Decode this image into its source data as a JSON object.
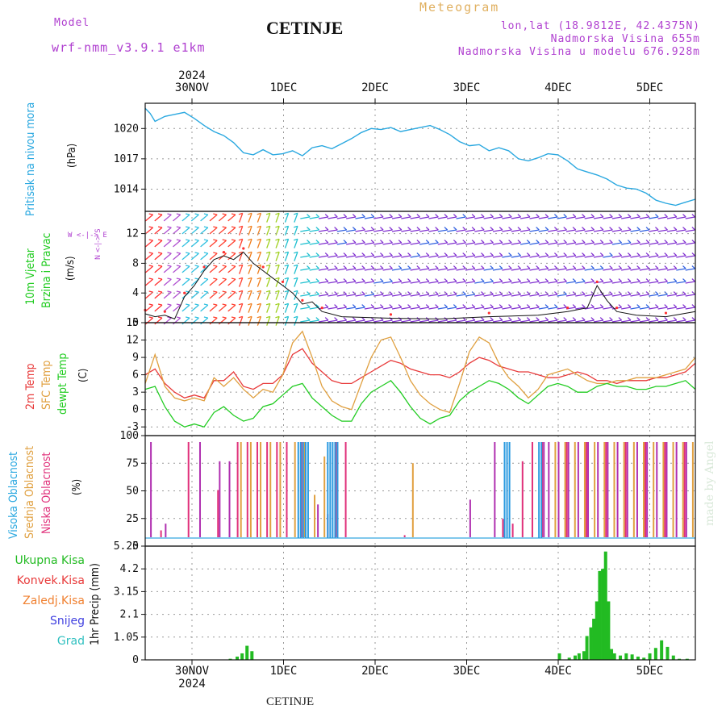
{
  "header": {
    "model_label": "Model",
    "model_value": "wrf-nmm_v3.9.1 e1km",
    "title": "CETINJE",
    "meteogram": "Meteogram",
    "lonlat": "lon,lat (18.9812E, 42.4375N)",
    "altitude": "Nadmorska Visina 655m",
    "model_altitude": "Nadmorska Visina u modelu 676.928m",
    "year_top": "2024",
    "footer_label": "CETINJE",
    "credit": "made by Angel"
  },
  "colors": {
    "pressure": "#2aa8e0",
    "temp2m": "#e83a3a",
    "sfc": "#e0a040",
    "dewpt": "#22cc22",
    "high": "#b030b0",
    "mid": "#e0a040",
    "low": "#e0307a",
    "precip": "#22bb22",
    "wind_dots": "#ff3030"
  },
  "axes": {
    "day_labels": [
      "30NOV",
      "1DEC",
      "2DEC",
      "3DEC",
      "4DEC",
      "5DEC"
    ],
    "bottom_year": "2024"
  },
  "panels": {
    "pressure": {
      "ylabel_main": "Pritisak na nivou mora",
      "unit": "(hPa)",
      "ticks": [
        "1020",
        "1017",
        "1014"
      ]
    },
    "wind": {
      "ylabel1": "10m Vjetar",
      "ylabel2": "Brzina i Pravac",
      "unit": "(m/s)",
      "ticks": [
        "12",
        "8",
        "4",
        "0"
      ],
      "compass": "W <-|-> E",
      "compass_v": "N <-|-> S"
    },
    "temp": {
      "l1": "2m Temp",
      "l2": "SFC Temp",
      "l3": "dewpt Temp",
      "unit": "(C)",
      "ticks": [
        "15",
        "12",
        "9",
        "6",
        "3",
        "0",
        "-3"
      ]
    },
    "cloud": {
      "l1": "Visoka Oblacnost",
      "l2": "Srednja Oblacnost",
      "l3": "Niska Oblacnost",
      "unit": "(%)",
      "ticks": [
        "100",
        "75",
        "50",
        "25",
        "0"
      ]
    },
    "precip": {
      "ylabel": "1hr Precip (mm)",
      "ticks": [
        "5.25",
        "4.2",
        "3.15",
        "2.1",
        "1.05",
        "0"
      ],
      "legend": [
        "Ukupna Kisa",
        "Konvek.Kisa",
        "Zaledj.Kisa",
        "Snijeg",
        "Grad"
      ],
      "legend_colors": [
        "#22bb22",
        "#e83a3a",
        "#f08030",
        "#4040e0",
        "#30c0c0"
      ]
    }
  },
  "chart_data": [
    {
      "type": "line",
      "title": "",
      "ylabel": "Pritisak na nivou mora (hPa)",
      "ylim": [
        1011.8,
        1022.5
      ],
      "x_days": [
        0.0,
        0.05,
        0.1,
        0.2,
        0.3,
        0.4,
        0.5,
        0.6,
        0.7,
        0.8,
        0.9,
        1.0,
        1.1,
        1.2,
        1.3,
        1.4,
        1.5,
        1.6,
        1.7,
        1.8,
        1.9,
        2.0,
        2.1,
        2.2,
        2.3,
        2.4,
        2.5,
        2.6,
        2.7,
        2.8,
        2.9,
        3.0,
        3.1,
        3.2,
        3.3,
        3.4,
        3.5,
        3.6,
        3.7,
        3.8,
        3.9,
        4.0,
        4.1,
        4.2,
        4.3,
        4.4,
        4.5,
        4.6,
        4.7,
        4.8,
        4.9,
        5.0,
        5.1,
        5.2,
        5.3,
        5.4,
        5.5,
        5.6
      ],
      "series": [
        {
          "name": "",
          "values": [
            1022.0,
            1021.5,
            1020.7,
            1021.2,
            1021.4,
            1021.6,
            1021.0,
            1020.3,
            1019.7,
            1019.3,
            1018.6,
            1017.6,
            1017.4,
            1017.9,
            1017.4,
            1017.5,
            1017.8,
            1017.3,
            1018.1,
            1018.3,
            1018.0,
            1018.5,
            1019.0,
            1019.6,
            1020.0,
            1019.9,
            1020.1,
            1019.7,
            1019.9,
            1020.1,
            1020.3,
            1019.9,
            1019.4,
            1018.7,
            1018.3,
            1018.4,
            1017.8,
            1018.1,
            1017.8,
            1017.0,
            1016.8,
            1017.1,
            1017.5,
            1017.4,
            1016.8,
            1016.0,
            1015.7,
            1015.4,
            1015.0,
            1014.4,
            1014.1,
            1014.0,
            1013.6,
            1012.9,
            1012.6,
            1012.4,
            1012.7,
            1013.0
          ]
        }
      ]
    },
    {
      "type": "line",
      "title": "",
      "ylabel": "10m Vjetar Brzina i Pravac (m/s)",
      "ylim": [
        0,
        15
      ],
      "x_days": [
        0.0,
        0.1,
        0.2,
        0.3,
        0.4,
        0.5,
        0.6,
        0.7,
        0.8,
        0.9,
        1.0,
        1.1,
        1.2,
        1.3,
        1.4,
        1.5,
        1.6,
        1.7,
        1.8,
        2.0,
        2.5,
        3.0,
        3.5,
        4.0,
        4.3,
        4.5,
        4.6,
        4.7,
        4.8,
        5.0,
        5.3,
        5.6
      ],
      "series": [
        {
          "name": "",
          "values": [
            1.2,
            0.8,
            1.0,
            0.5,
            3.5,
            5.0,
            7.0,
            8.5,
            9.0,
            8.5,
            9.5,
            8.0,
            7.0,
            6.0,
            5.0,
            4.0,
            2.5,
            2.8,
            1.5,
            0.8,
            0.6,
            0.5,
            0.8,
            1.0,
            1.5,
            2.0,
            5.0,
            3.0,
            1.5,
            1.0,
            0.8,
            1.5
          ]
        }
      ]
    },
    {
      "type": "line",
      "title": "",
      "ylabel": "(C)",
      "ylim": [
        -4.5,
        15
      ],
      "x_days": [
        0.0,
        0.1,
        0.2,
        0.3,
        0.4,
        0.5,
        0.6,
        0.7,
        0.8,
        0.9,
        1.0,
        1.1,
        1.2,
        1.3,
        1.4,
        1.5,
        1.6,
        1.7,
        1.8,
        1.9,
        2.0,
        2.1,
        2.2,
        2.3,
        2.4,
        2.5,
        2.6,
        2.7,
        2.8,
        2.9,
        3.0,
        3.1,
        3.2,
        3.3,
        3.4,
        3.5,
        3.6,
        3.7,
        3.8,
        3.9,
        4.0,
        4.1,
        4.2,
        4.3,
        4.4,
        4.5,
        4.6,
        4.7,
        4.8,
        4.9,
        5.0,
        5.1,
        5.2,
        5.3,
        5.4,
        5.5,
        5.6
      ],
      "series": [
        {
          "name": "2m Temp",
          "values": [
            6.0,
            7.0,
            4.5,
            3.0,
            2.0,
            2.5,
            2.0,
            5.0,
            5.0,
            6.5,
            4.0,
            3.5,
            4.5,
            4.5,
            6.0,
            9.5,
            10.5,
            8.0,
            6.5,
            5.0,
            4.5,
            4.5,
            5.5,
            6.5,
            7.5,
            8.5,
            8.0,
            7.0,
            6.5,
            6.0,
            6.0,
            5.5,
            6.5,
            8.0,
            9.0,
            8.5,
            7.5,
            7.0,
            6.5,
            6.5,
            6.0,
            5.5,
            5.5,
            6.0,
            6.5,
            6.0,
            5.0,
            5.0,
            4.5,
            5.0,
            5.0,
            5.0,
            5.5,
            5.5,
            6.0,
            6.5,
            8.0
          ]
        },
        {
          "name": "SFC Temp",
          "values": [
            4.5,
            9.5,
            4.0,
            2.0,
            1.5,
            2.0,
            1.5,
            5.5,
            4.0,
            5.5,
            3.5,
            2.0,
            3.5,
            3.0,
            6.0,
            11.5,
            13.5,
            9.0,
            4.0,
            1.5,
            0.5,
            0.0,
            4.5,
            9.0,
            12.0,
            12.5,
            9.0,
            5.0,
            2.5,
            1.0,
            0.0,
            -0.5,
            4.5,
            10.0,
            12.5,
            11.5,
            8.0,
            5.5,
            4.0,
            2.0,
            3.5,
            6.0,
            6.5,
            7.0,
            6.0,
            5.0,
            4.5,
            4.5,
            5.0,
            5.0,
            5.5,
            5.5,
            5.5,
            6.0,
            6.5,
            7.0,
            9.0
          ]
        },
        {
          "name": "dewpt Temp",
          "values": [
            3.5,
            4.0,
            0.5,
            -2.0,
            -3.0,
            -2.5,
            -3.0,
            -0.5,
            0.5,
            -1.0,
            -2.0,
            -1.5,
            0.5,
            1.0,
            2.5,
            4.0,
            4.5,
            2.0,
            0.5,
            -1.0,
            -2.0,
            -2.0,
            1.0,
            3.0,
            4.0,
            5.0,
            3.0,
            0.5,
            -1.5,
            -2.5,
            -1.5,
            -1.0,
            1.5,
            3.0,
            4.0,
            5.0,
            4.5,
            3.5,
            2.0,
            1.0,
            2.5,
            4.0,
            4.5,
            4.0,
            3.0,
            3.0,
            4.0,
            4.5,
            4.0,
            4.0,
            3.5,
            3.5,
            4.0,
            4.0,
            4.5,
            5.0,
            3.5
          ]
        }
      ]
    },
    {
      "type": "bar",
      "title": "",
      "ylabel": "(%)",
      "ylim": [
        0,
        100
      ],
      "series": [
        {
          "name": "Visoka Oblacnost",
          "x_days": [
            0.05,
            0.2,
            0.55,
            0.75,
            0.85,
            1.75,
            1.85,
            3.3,
            3.55,
            4.05,
            4.1,
            4.2,
            4.3,
            4.4,
            4.5,
            4.6,
            4.7,
            4.8,
            4.9,
            5.0,
            5.1,
            5.2,
            5.3,
            5.4,
            5.5
          ],
          "values": [
            100,
            15,
            100,
            80,
            80,
            35,
            25,
            40,
            100,
            100,
            100,
            100,
            100,
            100,
            100,
            100,
            100,
            100,
            100,
            100,
            100,
            100,
            100,
            100,
            100
          ]
        },
        {
          "name": "Srednja Oblacnost",
          "x_days": [
            0.95,
            1.05,
            1.15,
            1.25,
            1.35,
            1.5,
            1.6,
            1.7,
            1.8,
            2.7,
            4.15,
            4.25,
            4.35,
            4.45,
            4.55,
            4.65,
            4.75,
            4.85,
            4.95,
            5.05,
            5.15,
            5.25,
            5.35,
            5.45,
            5.55
          ],
          "values": [
            100,
            100,
            100,
            100,
            100,
            100,
            100,
            45,
            85,
            78,
            100,
            100,
            100,
            100,
            100,
            100,
            100,
            100,
            100,
            100,
            100,
            100,
            100,
            100,
            100
          ]
        },
        {
          "name": "Niska Oblacnost",
          "x_days": [
            0.12,
            0.4,
            0.7,
            0.9,
            1.0,
            1.1,
            1.2,
            1.3,
            1.4,
            1.55,
            1.9,
            2.0,
            2.6,
            3.6,
            3.7,
            3.8,
            3.9,
            4.0,
            4.25,
            4.45,
            4.65,
            4.85,
            5.05,
            5.25,
            5.45
          ],
          "values": [
            8,
            100,
            50,
            100,
            100,
            100,
            100,
            100,
            100,
            100,
            100,
            100,
            3,
            20,
            15,
            80,
            100,
            100,
            100,
            100,
            100,
            100,
            100,
            100,
            100
          ]
        }
      ]
    },
    {
      "type": "bar",
      "title": "",
      "ylabel": "1hr Precip (mm)",
      "ylim": [
        0,
        5.25
      ],
      "series": [
        {
          "name": "Ukupna Kisa",
          "x_days": [
            0.85,
            0.92,
            0.97,
            1.02,
            1.07,
            4.2,
            4.3,
            4.36,
            4.4,
            4.45,
            4.48,
            4.52,
            4.55,
            4.58,
            4.61,
            4.64,
            4.67,
            4.7,
            4.73,
            4.76,
            4.82,
            4.88,
            4.94,
            5.0,
            5.06,
            5.12,
            5.18,
            5.24,
            5.3,
            5.36,
            5.42,
            5.5
          ],
          "values": [
            0.05,
            0.15,
            0.3,
            0.65,
            0.4,
            0.3,
            0.1,
            0.2,
            0.3,
            0.4,
            1.1,
            1.5,
            1.9,
            2.7,
            4.1,
            4.2,
            5.0,
            2.7,
            0.5,
            0.3,
            0.2,
            0.3,
            0.25,
            0.15,
            0.1,
            0.3,
            0.55,
            0.9,
            0.6,
            0.2,
            0.05,
            0.05
          ]
        }
      ]
    }
  ]
}
